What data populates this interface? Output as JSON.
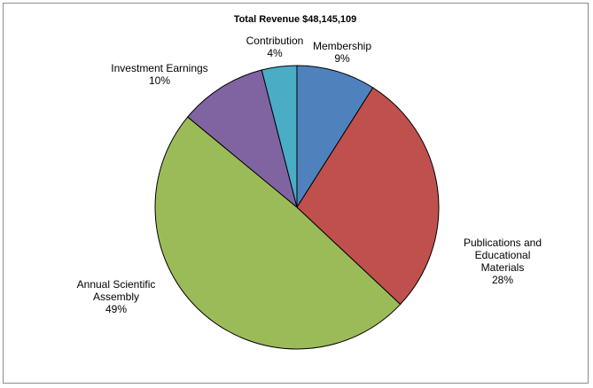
{
  "chart_data": {
    "type": "pie",
    "title": "Total Revenue $48,145,109",
    "slices": [
      {
        "name": "Membership",
        "label_lines": [
          "Membership"
        ],
        "percent_label": "9%",
        "value": 9,
        "color": "#4f81bd"
      },
      {
        "name": "Publications and Educational Materials",
        "label_lines": [
          "Publications and",
          "Educational",
          "Materials"
        ],
        "percent_label": "28%",
        "value": 28,
        "color": "#c0504d"
      },
      {
        "name": "Annual Scientific Assembly",
        "label_lines": [
          "Annual Scientific",
          "Assembly"
        ],
        "percent_label": "49%",
        "value": 49,
        "color": "#9bbb59"
      },
      {
        "name": "Investment Earnings",
        "label_lines": [
          "Investment Earnings"
        ],
        "percent_label": "10%",
        "value": 10,
        "color": "#8064a2"
      },
      {
        "name": "Contribution",
        "label_lines": [
          "Contribution"
        ],
        "percent_label": "4%",
        "value": 4,
        "color": "#4bacc6"
      }
    ],
    "start_angle": "12 o'clock",
    "direction": "clockwise",
    "legend": "none",
    "slice_border_color": "#000000"
  }
}
